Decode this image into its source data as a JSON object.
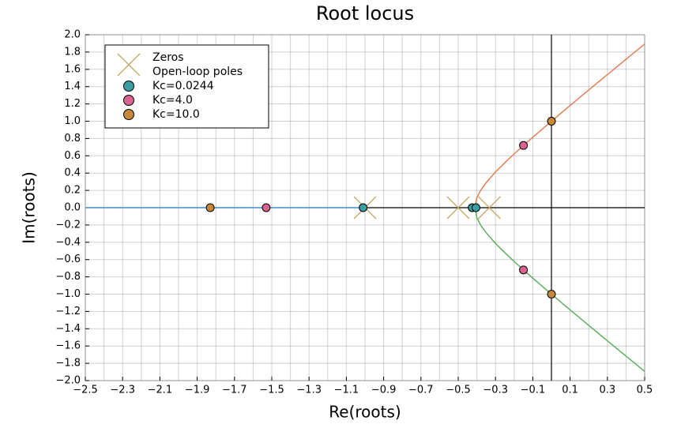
{
  "chart_data": {
    "type": "root_locus",
    "title": "Root locus",
    "xlabel": "Re(roots)",
    "ylabel": "Im(roots)",
    "xlim": [
      -2.5,
      0.5
    ],
    "ylim": [
      -2.0,
      2.0
    ],
    "xticks": [
      {
        "value": -2.5,
        "label": "−2.5"
      },
      {
        "value": -2.3,
        "label": "−2.3"
      },
      {
        "value": -2.1,
        "label": "−2.1"
      },
      {
        "value": -1.9,
        "label": "−1.9"
      },
      {
        "value": -1.7,
        "label": "−1.7"
      },
      {
        "value": -1.5,
        "label": "−1.5"
      },
      {
        "value": -1.3,
        "label": "−1.3"
      },
      {
        "value": -1.1,
        "label": "−1.1"
      },
      {
        "value": -0.9,
        "label": "−0.9"
      },
      {
        "value": -0.7,
        "label": "−0.7"
      },
      {
        "value": -0.5,
        "label": "−0.5"
      },
      {
        "value": -0.3,
        "label": "−0.3"
      },
      {
        "value": -0.1,
        "label": "−0.1"
      },
      {
        "value": 0.1,
        "label": "0.1"
      },
      {
        "value": 0.3,
        "label": "0.3"
      },
      {
        "value": 0.5,
        "label": "0.5"
      }
    ],
    "x_minor_grid": [
      -2.4,
      -2.2,
      -2.0,
      -1.8,
      -1.6,
      -1.4,
      -1.2,
      -1.0,
      -0.8,
      -0.6,
      -0.4,
      -0.2,
      0.0,
      0.2,
      0.4
    ],
    "yticks": [
      {
        "value": 2.0,
        "label": "2.0"
      },
      {
        "value": 1.8,
        "label": "1.8"
      },
      {
        "value": 1.6,
        "label": "1.6"
      },
      {
        "value": 1.4,
        "label": "1.4"
      },
      {
        "value": 1.2,
        "label": "1.2"
      },
      {
        "value": 1.0,
        "label": "1.0"
      },
      {
        "value": 0.8,
        "label": "0.8"
      },
      {
        "value": 0.6,
        "label": "0.6"
      },
      {
        "value": 0.4,
        "label": "0.4"
      },
      {
        "value": 0.2,
        "label": "0.2"
      },
      {
        "value": 0.0,
        "label": "0.0"
      },
      {
        "value": -0.2,
        "label": "−0.2"
      },
      {
        "value": -0.4,
        "label": "−0.4"
      },
      {
        "value": -0.6,
        "label": "−0.6"
      },
      {
        "value": -0.8,
        "label": "−0.8"
      },
      {
        "value": -1.0,
        "label": "−1.0"
      },
      {
        "value": -1.2,
        "label": "−1.2"
      },
      {
        "value": -1.4,
        "label": "−1.4"
      },
      {
        "value": -1.6,
        "label": "−1.6"
      },
      {
        "value": -1.8,
        "label": "−1.8"
      },
      {
        "value": -2.0,
        "label": "−2.0"
      }
    ],
    "grid": true,
    "zero_lines": true,
    "legend": "top-left",
    "series": [
      {
        "mode": "line",
        "color": "#56a3e3",
        "x": [
          -2.5,
          -1.0
        ],
        "y": [
          0,
          0
        ]
      },
      {
        "mode": "line",
        "color": "#e0805a",
        "x": [
          -0.411,
          -0.4,
          -0.38,
          -0.35,
          -0.3,
          -0.25,
          -0.2,
          -0.15,
          -0.1,
          -0.05,
          0,
          0.1,
          0.2,
          0.3,
          0.4,
          0.5
        ],
        "y": [
          0,
          0.117,
          0.2,
          0.29,
          0.413,
          0.52,
          0.622,
          0.72,
          0.814,
          0.908,
          1.0,
          1.182,
          1.361,
          1.539,
          1.716,
          1.893
        ]
      },
      {
        "mode": "line",
        "color": "#5fad5f",
        "x": [
          -0.411,
          -0.4,
          -0.38,
          -0.35,
          -0.3,
          -0.25,
          -0.2,
          -0.15,
          -0.1,
          -0.05,
          0,
          0.1,
          0.2,
          0.3,
          0.4,
          0.5
        ],
        "y": [
          0,
          -0.117,
          -0.2,
          -0.29,
          -0.413,
          -0.52,
          -0.622,
          -0.72,
          -0.814,
          -0.908,
          -1.0,
          -1.182,
          -1.361,
          -1.539,
          -1.716,
          -1.893
        ]
      },
      {
        "mode": "cross",
        "name": "Zeros",
        "color": "#c4a66a",
        "x": [],
        "y": []
      },
      {
        "mode": "cross",
        "name": "Open-loop poles",
        "color": "#c4a66a",
        "x": [
          -1.0,
          -0.5,
          -0.333
        ],
        "y": [
          0,
          0,
          0
        ]
      },
      {
        "mode": "marker",
        "name": "Kc=0.0244",
        "color": "#3a9fa3",
        "x": [
          -1.01,
          -0.425,
          -0.405
        ],
        "y": [
          0,
          0,
          0
        ]
      },
      {
        "mode": "marker",
        "name": "Kc=4.0",
        "color": "#da6290",
        "x": [
          -1.53,
          -0.15,
          -0.15
        ],
        "y": [
          0,
          0.72,
          -0.72
        ]
      },
      {
        "mode": "marker",
        "name": "Kc=10.0",
        "color": "#c8883a",
        "x": [
          -1.83,
          0,
          0
        ],
        "y": [
          0,
          1.0,
          -1.0
        ]
      }
    ]
  }
}
